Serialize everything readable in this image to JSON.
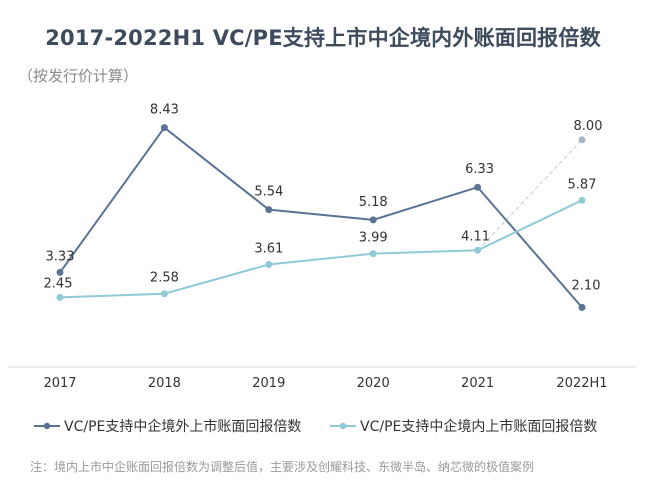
{
  "title": "2017-2022H1 VC/PE支持上市中企境内外账面回报倍数",
  "subtitle": "（按发行价计算）",
  "note": "注：境内上市中企账面回报倍数为调整后值，主要涉及创耀科技、东微半岛、纳芯微的极值案例",
  "colors": {
    "overseas": "#5a7393",
    "domestic": "#8fcad6",
    "domestic_outlier": "#a9b7c9"
  },
  "chart_data": {
    "type": "line",
    "categories": [
      "2017",
      "2018",
      "2019",
      "2020",
      "2021",
      "2022H1"
    ],
    "series": [
      {
        "name": "VC/PE支持中企境外上市账面回报倍数",
        "values": [
          3.33,
          8.43,
          5.54,
          5.18,
          6.33,
          2.1
        ],
        "labels": [
          "3.33",
          "8.43",
          "5.54",
          "5.18",
          "6.33",
          "2.10"
        ]
      },
      {
        "name": "VC/PE支持中企境内上市账面回报倍数",
        "values": [
          2.45,
          2.58,
          3.61,
          3.99,
          4.11,
          5.87
        ],
        "labels": [
          "2.45",
          "2.58",
          "3.61",
          "3.99",
          "4.11",
          "5.87"
        ]
      }
    ],
    "domestic_unadjusted": {
      "from": "2021",
      "from_value": 4.11,
      "to": "2022H1",
      "value": 8.0,
      "label": "8.00"
    },
    "ylim": [
      0,
      10
    ],
    "grid": false,
    "legend": "bottom"
  }
}
